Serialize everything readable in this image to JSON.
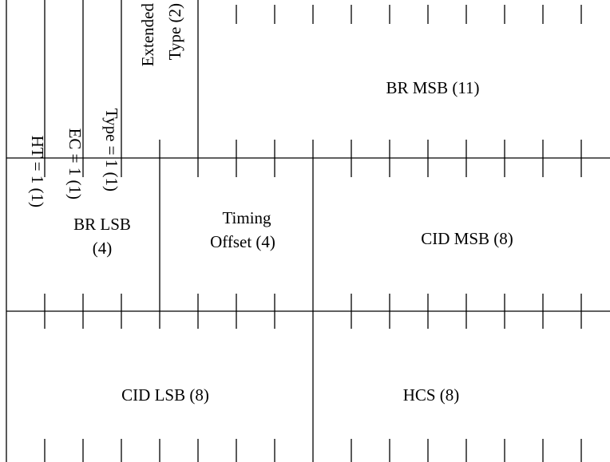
{
  "diagram": {
    "title": "",
    "fields": {
      "ht": "HT = 1 (1)",
      "ec": "EC = 1 (1)",
      "type": "Type = 1 (1)",
      "ext_type_1": "Extended",
      "ext_type_2": "Type (2)",
      "br_msb": "BR MSB (11)",
      "br_lsb_1": "BR LSB",
      "br_lsb_2": "(4)",
      "timing_1": "Timing",
      "timing_2": "Offset (4)",
      "cid_msb": "CID MSB (8)",
      "cid_lsb": "CID LSB (8)",
      "hcs": "HCS (8)"
    }
  }
}
